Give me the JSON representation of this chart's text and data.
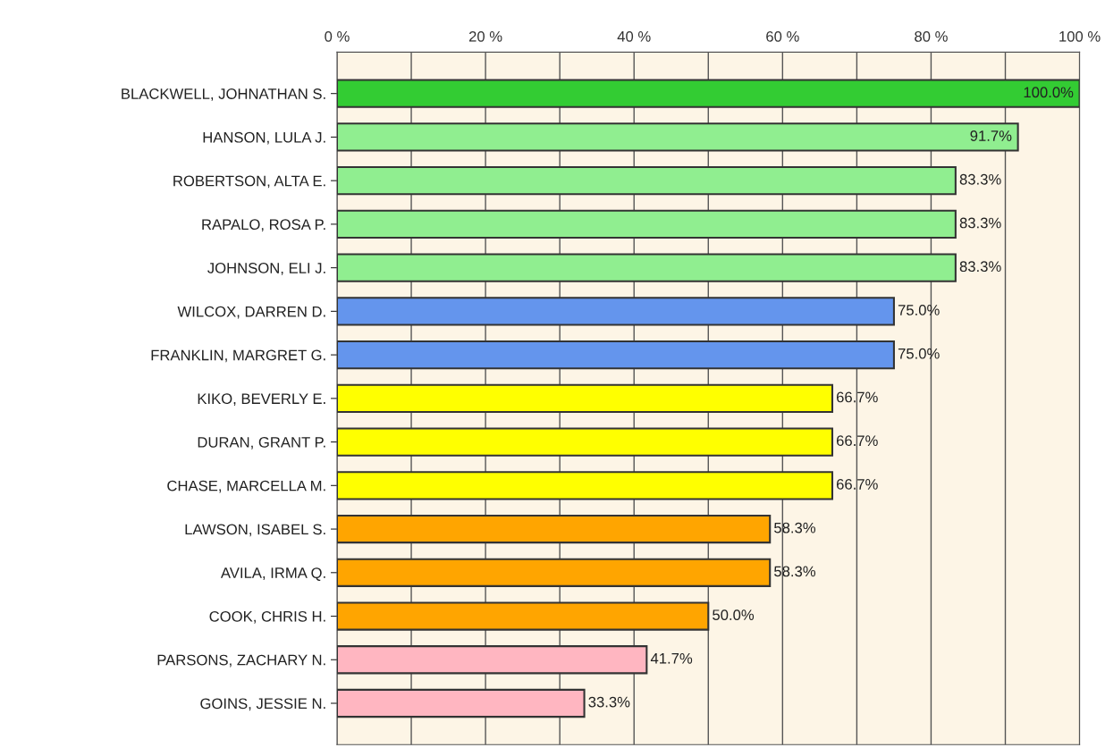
{
  "chart_data": {
    "type": "bar",
    "orientation": "horizontal",
    "categories": [
      "BLACKWELL, JOHNATHAN S.",
      "HANSON, LULA J.",
      "ROBERTSON, ALTA E.",
      "RAPALO, ROSA P.",
      "JOHNSON, ELI J.",
      "WILCOX, DARREN D.",
      "FRANKLIN, MARGRET G.",
      "KIKO, BEVERLY E.",
      "DURAN, GRANT P.",
      "CHASE, MARCELLA M.",
      "LAWSON, ISABEL S.",
      "AVILA, IRMA Q.",
      "COOK, CHRIS H.",
      "PARSONS, ZACHARY N.",
      "GOINS, JESSIE N."
    ],
    "values": [
      100.0,
      91.7,
      83.3,
      83.3,
      83.3,
      75.0,
      75.0,
      66.7,
      66.7,
      66.7,
      58.3,
      58.3,
      50.0,
      41.7,
      33.3
    ],
    "value_labels": [
      "100.0%",
      "91.7%",
      "83.3%",
      "83.3%",
      "83.3%",
      "75.0%",
      "75.0%",
      "66.7%",
      "66.7%",
      "66.7%",
      "58.3%",
      "58.3%",
      "50.0%",
      "41.7%",
      "33.3%"
    ],
    "colors": [
      "#33cc33",
      "#90ee90",
      "#90ee90",
      "#90ee90",
      "#90ee90",
      "#6495ed",
      "#6495ed",
      "#ffff00",
      "#ffff00",
      "#ffff00",
      "#ffa500",
      "#ffa500",
      "#ffa500",
      "#ffb6c1",
      "#ffb6c1"
    ],
    "xlim": [
      0,
      100
    ],
    "xticks": [
      {
        "value": 0,
        "label": "0 %"
      },
      {
        "value": 10,
        "label": null
      },
      {
        "value": 20,
        "label": "20 %"
      },
      {
        "value": 30,
        "label": null
      },
      {
        "value": 40,
        "label": "40 %"
      },
      {
        "value": 50,
        "label": null
      },
      {
        "value": 60,
        "label": "60 %"
      },
      {
        "value": 70,
        "label": null
      },
      {
        "value": 80,
        "label": "80 %"
      },
      {
        "value": 90,
        "label": null
      },
      {
        "value": 100,
        "label": "100 %"
      }
    ],
    "grid": "x",
    "legend": false
  }
}
